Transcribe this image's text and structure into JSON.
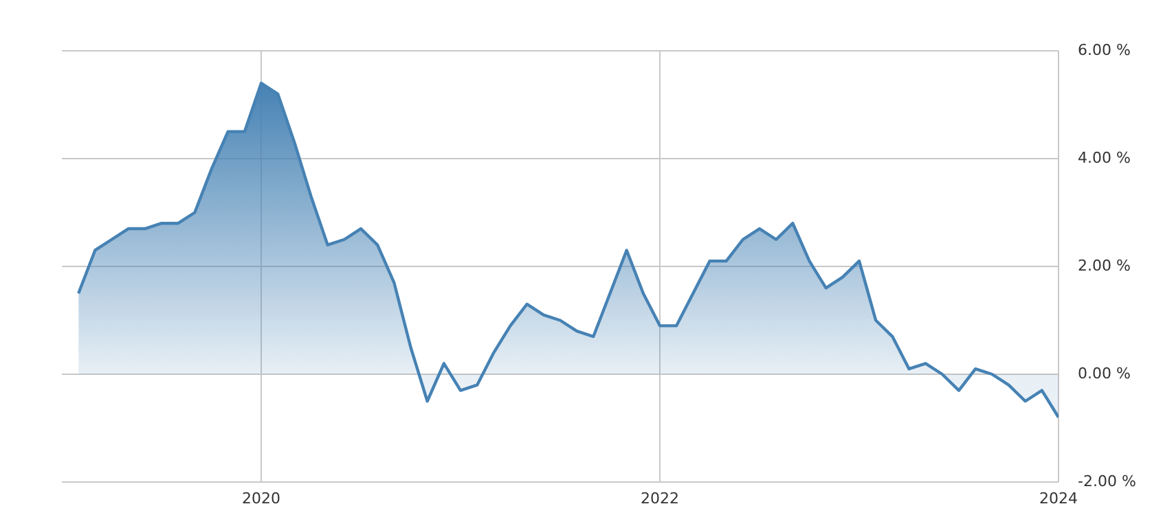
{
  "chart_data": {
    "type": "area",
    "x": [
      "2019-02",
      "2019-03",
      "2019-04",
      "2019-05",
      "2019-06",
      "2019-07",
      "2019-08",
      "2019-09",
      "2019-10",
      "2019-11",
      "2019-12",
      "2020-01",
      "2020-02",
      "2020-03",
      "2020-04",
      "2020-05",
      "2020-06",
      "2020-07",
      "2020-08",
      "2020-09",
      "2020-10",
      "2020-11",
      "2020-12",
      "2021-01",
      "2021-02",
      "2021-03",
      "2021-04",
      "2021-05",
      "2021-06",
      "2021-07",
      "2021-08",
      "2021-09",
      "2021-10",
      "2021-11",
      "2021-12",
      "2022-01",
      "2022-02",
      "2022-03",
      "2022-04",
      "2022-05",
      "2022-06",
      "2022-07",
      "2022-08",
      "2022-09",
      "2022-10",
      "2022-11",
      "2022-12",
      "2023-01",
      "2023-02",
      "2023-03",
      "2023-04",
      "2023-05",
      "2023-06",
      "2023-07",
      "2023-08",
      "2023-09",
      "2023-10",
      "2023-11",
      "2023-12",
      "2024-01"
    ],
    "series": [
      {
        "color": "#4682b4",
        "values": [
          1.5,
          2.3,
          2.5,
          2.7,
          2.7,
          2.8,
          2.8,
          3.0,
          3.8,
          4.5,
          4.5,
          5.4,
          5.2,
          4.3,
          3.3,
          2.4,
          2.5,
          2.7,
          2.4,
          1.7,
          0.5,
          -0.5,
          0.2,
          -0.3,
          -0.2,
          0.4,
          0.9,
          1.3,
          1.1,
          1.0,
          0.8,
          0.7,
          1.5,
          2.3,
          1.5,
          0.9,
          0.9,
          1.5,
          2.1,
          2.1,
          2.5,
          2.7,
          2.5,
          2.8,
          2.1,
          1.6,
          1.8,
          2.1,
          1.0,
          0.7,
          0.1,
          0.2,
          0.0,
          -0.3,
          0.1,
          0.0,
          -0.2,
          -0.5,
          -0.3,
          -0.8
        ]
      }
    ],
    "xlim": [
      "2019",
      "2024"
    ],
    "xticks": [
      "2020",
      "2022",
      "2024"
    ],
    "ylim": [
      -2,
      6
    ],
    "yticks": [
      {
        "value": -2,
        "label": "-2.00 %"
      },
      {
        "value": 0,
        "label": "0.00 %"
      },
      {
        "value": 2,
        "label": "2.00 %"
      },
      {
        "value": 4,
        "label": "4.00 %"
      },
      {
        "value": 6,
        "label": "6.00 %"
      }
    ],
    "grid": true,
    "legend": false
  }
}
